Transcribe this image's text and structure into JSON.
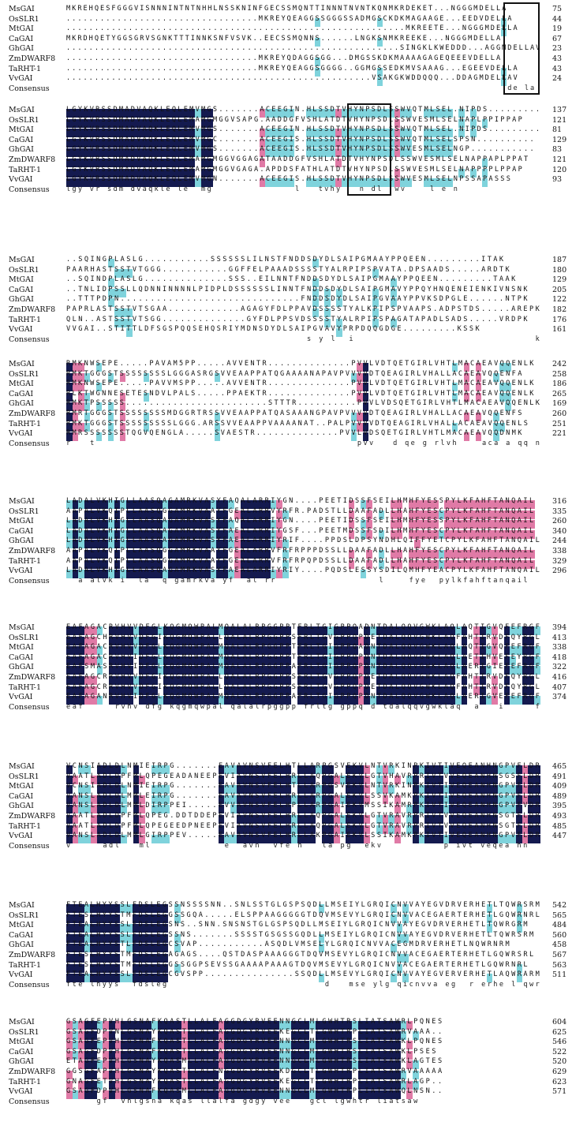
{
  "colors": {
    "identical": "#141a4f",
    "strong": "#e07aa6",
    "similar": "#7fd3dc"
  },
  "species": [
    "MsGAI",
    "OsSLR1",
    "MtGAI",
    "CaGAI",
    "GhGAI",
    "ZmDWARF8",
    "TaRHT-1",
    "VvGAI"
  ],
  "consensus_label": "Consensus",
  "blocks": [
    {
      "seqs": [
        "MKREHQESFGGGVISNNNINTNTNHHLNSSKNINFGECSSMQNTTINNNTNVNTKQNMKRDEKET...NGGGMDELLA",
        "..................................MKREYQEAGGSSGGGSSADMGSCKDKMAGAAGE...EEDVDELLA",
        "............................................................MKREETE...NGGGMDELLA",
        "MKRDHQETYGGSGRVSGNKTTTINNKSNFVSVK..EECSSMQNNS......LNGKSNMKREEKE...NGGGMDELLA",
        "...........................................................SINGKLKWEDDD...AGGMDELLAV",
        "..................................MKREYQDAGGSGG...DMGSSKDKMAAAAGAGEQEEEVDELLA",
        "..................................MKREYQEAGGSGGGG..GGMGSSEDKMVSAAAG...EGEEVDELLA",
        "......................................................VSAKGKWDDQQQ...DDAGMDELLAV"
      ],
      "nums": [
        "75",
        "44",
        "19",
        "67",
        "23",
        "43",
        "43",
        "24"
      ],
      "consensus": "                                                                              de la"
    },
    {
      "seqs": [
        "LGYKVRSSDMADVAQKLEQLEMVMGS.......ACEEGIN.HLSSDTVHYNPSDLSSWVQTMLSEL.NIPDS.........",
        "LGYKVRSSDMADVAQKLEQLEMAMGMGGVSAPG.AADDGFVSHLATDTVHYNPSDLSSWVESMLSELNAPLPPIPPAP",
        "LGYKVRSSDMADVAQKLEQLEMVMGS.......ACEEGIN.HLSSDTVHYNPSDLSSWVQTMLSEL.NIPDS.........",
        "LGYKVRSSDMADVAQKLEQLEMVMGC.......ACEEGIS.HLSSDTVHYNPSDLSSWVQTMLSELSPSN..........",
        "LGYKVRSSDMADVAQKLEQLEMVMGS.......ACEEGIS.HLSSDTVHYNPSDLSSWVESMLSELNGP...........",
        "LGYKVRSSDMADVAQKLEQLEMAMGMGGVGGAGATAADDGFVSHLATDTVHYNPSDLSSWVESMLSELNAPPAPLPPAT",
        "LGYKVRSSDMADVAQKLEQLEMAMGMGGVGAGA.APDDSFATHLATDTVHYNPSDLSSWVESMLSELNAPPPPLPPAP",
        "LGYKVRSSDMADVAQKLEQLEMVMGN.......ACEEGIS.HLSSDTVHYNPSDLSSWVESMLSELNPSSAPASSS"
      ],
      "nums": [
        "137",
        "121",
        "81",
        "129",
        "83",
        "121",
        "120",
        "93"
      ],
      "consensus": "lgy vr sdm dvaqkle le  mg              l   tvhy   n dl  wv    l e n"
    },
    {
      "seqs": [
        "..SQINGPLASLG...........SSSSSSLILNSTFNDDSDYDLSAIPGMAAYPPQEEN.........ITAK",
        "PAARHASTSSTVTGGG...........GGFFELPAAADSSSSTYALRPIPSPVATA.DPSAADS.....ARDTK",
        "..SQINDPLASLG..............SSS..EILNNTFNDDSDYDLSAIPGMAAYPPQEEN.........TAAK",
        "..TNLIDPSSLLQDNNINNNNLPIDPLDSSSSSSLINNTFNDDSDYDLSAIPGMAVYPPQYHNQENEIENKIVNSNK",
        "..TTTPDPN..............................FNDDSDYDLSAIPGVAAYPPVKSDPGLE......NTPK",
        "PAPRLASTSSTVTSGAA............AGAGYFDLPPAVDSSSSTYALKPIPSPVAAPS.ADPSTDS.....AREPK",
        "QLN..ASTSSTVTSGG..............GYFDLPPSVDSSSSTYALRPIPSPAGATAPADLSADS.....VRDPK",
        "VVGAI..STITTLDFSGSPQQSEHQSRIYMDNSDYDLSAIPGVAVYPRPDQQGDGE.........KSSK"
      ],
      "nums": [
        "187",
        "180",
        "129",
        "205",
        "122",
        "182",
        "176",
        "161"
      ],
      "consensus": "                                        s y l  i                              k"
    },
    {
      "seqs": [
        "RMKNWSEPE.....PAVAM5PP.....AVVENTR..............PVVLVDTQETGIRLVHTLMACAEAVQQENLK",
        "RMKTGGGSTSSSSSSSSLGGGASRGSVVEAAPPATQGAAAANAPAVPVVVVDTQEAGIRLVHALLACAEAVQQENFA",
        "RMKNWSEPE.....PAVVMSPP.....AVVENTR..............PVVLVDTQETGIRLVHTLMACAEAVQQENLK",
        "RLKTWGNNESETESNDVLPALS.....PPAEKTR..............PVVLVDTQETGIRLVHTLMACAEAVQQENLK",
        "RMKTPSSSSS........................STTTR..........PVVLVDSQETGIRLVHTLMACAEAVQQENLK",
        "RMRTGGGSTSSSSSSSSMDGGRTRSSVVEAAPPATQASAAANGPAVPVVVVDTQEAGIRLVHALLACAEAVQQENFS",
        "RMKTGGGSTSSSSSSSSSLGGG.ARSSVVEAAPPVAAAANAT..PALPVVVVDTQEAGIRLVHALLACAEAVQQENLS",
        "RMRSSSSSSSTQGVQENGLA.....SVAESTR..............PVVLVDSQETGIRLVHTLMACAEAVQQDNMK"
      ],
      "nums": [
        "242",
        "258",
        "186",
        "265",
        "169",
        "260",
        "251",
        "221"
      ],
      "consensus": "r   t                                            pvv   d qe g rlvh    aca a qq n"
    },
    {
      "seqs": [
        "LADALVKHIGLLAASQAGAMRKVASYFAQALARRIYGN....PEETIDSSFSEILHMHFYESSPYLKFAHFTANQAIL",
        "AAPALVKQIPLLAASQGGAMRKVAAYFGEALARRVYRFR.PADSTLLDAAFADLLHAHFYESCPYLKFAHFTANQAIL",
        "LADALVKHIGLLAASQAGAMRKVASYFAQALARRIYGN....PEETIDSSFSEILHMHFYESSPYLKFAHFTANQAIL",
        "LADALVKHIGLLAASQAGAMRKVASYFAEALARRIYGSF...PEETMDSSFSDILHMHFYESCPYLKFAHFTANQAIL",
        "LADALVKHIGLLAASQAGAMRKVASYFAEALARRIYRIF....PPDSLDPSYNDHLQIFFYETCPYLKFAHFTANQAIL",
        "AAPALVKQIPLLAASQGGAMRKVAAYFGEALARRVFRFRPPPDSSLLDAAFADLLHAHFYESCPYLKFAHFTANQAIL",
        "AAPALVKQIPLLAASQGGAMRKVAAYFGEALARRVFRFRPQPDSSLLDAAFADLLHAHFYESCPYLKFAHFTANQAIL",
        "LADALVKHIGLLAASQAGAMRKVASYFAEALARRIYRIY....PQDSLESSYSDILQMHFYEACPYLKFAHFTANQAIL"
      ],
      "nums": [
        "316",
        "335",
        "260",
        "340",
        "244",
        "338",
        "329",
        "296"
      ],
      "consensus": "  a alvk i  la  q gamrkva yf  al rr                 l    fye  pylkfahftanqail"
    },
    {
      "seqs": [
        "EAFAGACRVHVVDFGLKQGMQWPALMQALALRPGGPPTFRLTGIGPPQADNTDALQQVGWKLAQLAQTIGVQFEFRGF",
        "EAFAGCHRVHVVDFGIKQGMQWPALLQALALRPGGPPSFRLTGVGPPQPDETDALQQVGWKLAQFAHTIRVDFQYRGL",
        "EAFAGACRVHVVDFGLKQGMQWPALMQALALRPGGPPTFRLTGIGPPQADNTDALQQVGWKLAQLAQTIGVQFEFRGF",
        "EAFAGACRVHVIDFGLKQGMQWPALMQALALRPGGPPTFRLTGIGPPQPDNTDALQQVGWKLAQLAETIHVEFEYRGF",
        "EAFSMASRVHVIDFGLKQGMQWPALMQALALRPGGPPAFRLTGIGPPQPDNTDALQQVGWKLAQLAERIGIEFEFRGF",
        "EAFAGCRRVHVVDFGIKQGMQWPALLQALALRPGGPPSFRLTGVGPPQPDETDALQQVGWKLAQFAHTIRVDFQYRGL",
        "EAFAGCRRVHVVDFGIKQGMQWPALLQALALRPGGPPSFRLTGVGPPQPDETDALQQVGWKLAQFAHTIRVDFQYRGL",
        "EAFAGANRVHVIDFGLKQGMQWPALMQALALRPGGPPAFRLTGIGPPQPDNTDALQQVGWKLAQLAERIGVEFEFRGF"
      ],
      "nums": [
        "394",
        "413",
        "338",
        "418",
        "322",
        "416",
        "407",
        "374"
      ],
      "consensus": "eaf     rvhv dfg kqgmqwpal qalalrpggpp frltg gppq d tdalqqvgwklaq  a   i     f  rg"
    },
    {
      "seqs": [
        "VCNSIADLDLNMIEIRPG.......EAVAVNSVFELHTLLARPGSVEKVLNTVRKINPKIVTIVEQEANHNGPVFLDR",
        "VAATLADLDPFMLQPEGEADANEEPEVIAVNSVFELHRLLAQPGALEKVLGTVHAVRPRIVTVVEQEANHNSGSFLDR",
        "VCNSIADLDLNMIEIRPG.......EAVAVNSVFELHTLLARPGSVEKVLNTVRKINPKIVTIVEQEANHNGPVFLDR",
        "VANSLADLDLMMLEIRPG.......EAVAVNSVFELHRLLARPGALEKVLSSVKAMKPKIVTIVEQEANHNGPVFLDR",
        "VANSLADLDLMMLDIRPPEI.....EVVAVNSVFELHPLLARPGAIEKVMSSIKAMRPKIVTIVEQEANHNGPVFVDR",
        "VAATLADLDPFMLQPEG.DDTDDEPEVIAVNSVFELHRLLAQPGALEKVLGTVRAVRPRIVTVVEQEANHNSGTFLDR",
        "VAATLADLDPFMLQPEGEEDPNEEPEVIAVNSVFELHRLLAQPGALEKVLGTVRAVRPRIVTVVEQEANHNSGTFLDR",
        "VANSLADLDLMMLGIRPPEV.....EAVAVNSVFELHRLLAKPGAIEKVLSSIKAMKPKIVTIVEQEANHNGPVFLDR"
      ],
      "nums": [
        "465",
        "491",
        "409",
        "489",
        "395",
        "493",
        "485",
        "447"
      ],
      "consensus": "v     adl   ml            e  avn  vfe h   la pg  ekv          p ivt veqea hn     f dr"
    },
    {
      "seqs": [
        "FTEALHYYSSLFDSLEGSSNSSSSNN..SNLSSTGLGSPSQDLLMSEIYLGRQICNVVAYEGVDRVERHETLTQWRSRM",
        "FTESLHYYSTMFDSLEGGSSGQA.....ELSPPAAGGGGGTDQVMSEVYLGRQICNVVACEGAERTERHETLGQWRNRL",
        "FTEALHYYSSLFDSLEGSNS..SNN.SNSNSTGLGSPSQDLLMSEIYLGRQICNVVAYEGVDRVERHETLTQWRGRM",
        "FTEALHYYSSLFDSLEGSSNS.......SSSSTGSGSSGQDLLMSEIYLGRQICNVVAYEGVDRVERHETLTQWRSRM",
        "FTEALHYYSTLFDSLEGCSVAP...........ASQDLVMSELYLGRQICNVVACEGMDRVERHETLNQWRNRM",
        "FTESLHYYSTMFDSLEGAGAGS....QSTDASPAAAGGGTDQVMSEVYLGRQICNVVACEGAERTERHETLGQWRSRL",
        "FTESLHYYSTMFDSLEGGSSGGPSEVSSGAAAAPAAAGTDQVMSEVYLGRQICNVVACEGAERTERHETLGQWRNRL",
        "FTEALHYYSSLFDSLEGCGVSPP...............SSQDLLMSEVYLGRQICNVVAYEGVERVERHETLAQWRARM"
      ],
      "nums": [
        "542",
        "565",
        "484",
        "560",
        "458",
        "567",
        "563",
        "511"
      ],
      "consensus": "fte lhyys  fdsleg                          d   mse ylg qicnvva eg  r erhe l qwr r"
    },
    {
      "seqs": [
        "GSAGFEPVHLGSNAFKQASTLLALFAGGDGYRVEENNGCLMLGWHTRSLIATSAWRLPQNES",
        "GSAGFDPVNLGSNAYKQASTLLALFAGGDGYRVEEKEGCLTLGWHTRPLIATSAWRVAAA..",
        "GSAGFEPVHLGSNAFKQASTLLALFAGGDGYRVEENNGCLMLGWHTRSLIATSAWKLPQNES",
        "GSAGFDPVHLGSNAFKQASTLLALFAGGDGYRVEENNGCLMLGWHTRSLIATSAWKLPSES",
        "ETAGFEPVHLGSNAYKQASMLLALFAGGDGYRVEENNGCLMLGWHTRSLIATSAWKLAGTES",
        "GGSGFAPVHLGSNAYKQASTLLALFNGGDGYRVEEKDGCLTLGWHTRPLIATSAWRVAAAAA",
        "GNAGFETVHLGSNAYKQASTLLALFAGGDGYRVEEKEGCLTLGWHTRPLIATSAWRLAGP..",
        "GSAGFDPVHLGSNAFKQASMLLALFAGGDGYRVEENNGCLMLGWHTRPLIATSAWQLNSN.."
      ],
      "nums": [
        "604",
        "625",
        "546",
        "522",
        "520",
        "629",
        "623",
        "571"
      ],
      "consensus": "     gf  vhlgsna kqas llalfa gdgy vee   gcl lgwhtr liatsaw"
    }
  ]
}
